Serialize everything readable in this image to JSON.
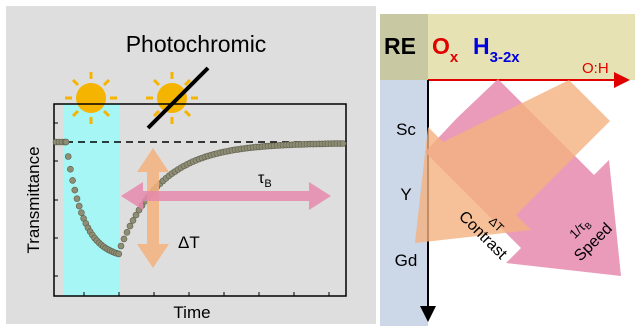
{
  "left_panel": {
    "title": "Photochromic",
    "y_axis_label": "Transmittance",
    "x_axis_label": "Time",
    "delta_t_label": "ΔT",
    "tau_label": "τ",
    "tau_subscript": "B",
    "background_color": "#dedede",
    "illumination_color": "#a6f6f6",
    "sun_color": "#f5b400",
    "curve_color": "#7f7f6a"
  },
  "right_panel": {
    "formula": {
      "re": "RE",
      "o": "O",
      "o_sub": "x",
      "h": "H",
      "h_sub": "3-2x"
    },
    "x_axis_label": "O:H",
    "y_axis_items": [
      "Sc",
      "Y",
      "Gd"
    ],
    "arrow_contrast": {
      "top": "ΔT",
      "bottom": "Contrast",
      "color": "#f4b27e"
    },
    "arrow_speed": {
      "prefix": "1/",
      "symbol": "τ",
      "subscript": "B",
      "bottom": "Speed",
      "color": "#e58aad"
    },
    "header_color": "#e6e2b3",
    "sidebar_color": "#ccd7e8",
    "formula_o_color": "#e00000",
    "formula_h_color": "#0000e0"
  }
}
